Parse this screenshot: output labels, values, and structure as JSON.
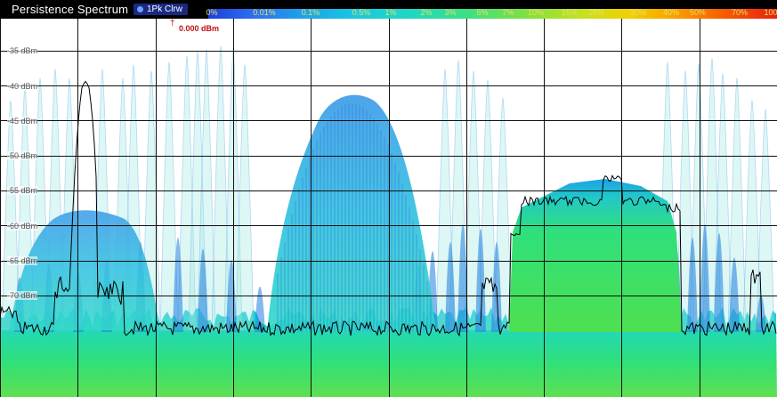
{
  "window": {
    "title": "Persistence Spectrum",
    "trace_label": "1Pk Clrw"
  },
  "reference_marker": {
    "label": "0.000 dBm",
    "color": "#c01010"
  },
  "persistence_scale": {
    "labels": [
      "0%",
      "0.01%",
      "0.1%",
      "0.5%",
      "1%",
      "2%",
      "3%",
      "5%",
      "7%",
      "10%",
      "15%",
      "20%",
      "30%",
      "40%",
      "50%",
      "70%",
      "100%"
    ],
    "label_color": "#e8e060",
    "gradient_colors": [
      "#1a3fd8",
      "#1e9fe8",
      "#1fd8c0",
      "#3fe080",
      "#c8e020",
      "#f0d000",
      "#f8a000",
      "#e82010"
    ]
  },
  "y_axis": {
    "labels": [
      "-35 dBm",
      "-40 dBm",
      "-45 dBm",
      "-50 dBm",
      "-55 dBm",
      "-60 dBm",
      "-65 dBm",
      "-70 dBm"
    ]
  },
  "colors": {
    "noise_floor": "#2fe07a",
    "signal_blue": "#1e7fe0",
    "signal_cyan": "#30c8e0",
    "trace_line": "#000000",
    "grid": "#111111"
  }
}
